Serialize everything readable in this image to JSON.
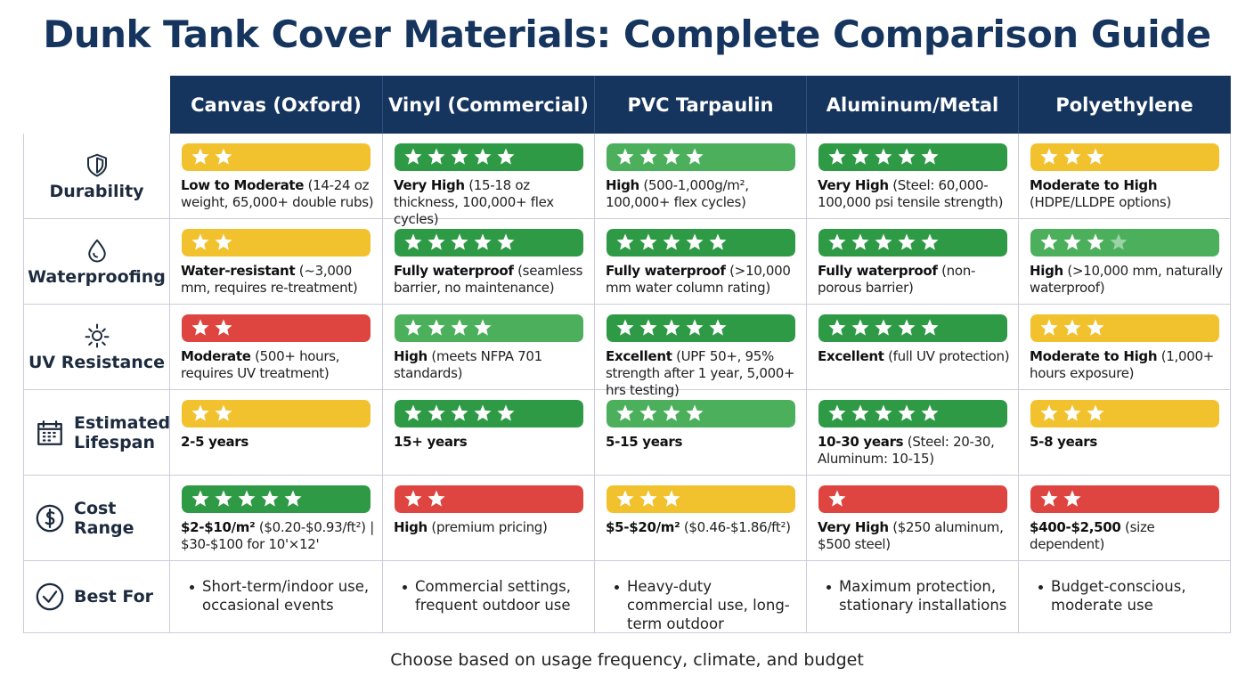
{
  "title": "Dunk Tank Cover Materials: Complete Comparison Guide",
  "columns": [
    "Canvas (Oxford)",
    "Vinyl (Commercial)",
    "PVC Tarpaulin",
    "Aluminum/Metal",
    "Polyethylene"
  ],
  "rows": [
    {
      "label": "Durability",
      "cells": [
        {
          "rating": 2,
          "color": "#f2c12e",
          "bold": "Low to Moderate",
          "text": "(14-24 oz weight, 65,000+ double rubs)"
        },
        {
          "rating": 5,
          "color": "#2e9a45",
          "bold": "Very High",
          "text": "(15-18 oz thickness, 100,000+ flex cycles)"
        },
        {
          "rating": 4,
          "color": "#4caf5c",
          "bold": "High",
          "text": "(500-1,000g/m², 100,000+ flex cycles)"
        },
        {
          "rating": 5,
          "color": "#2e9a45",
          "bold": "Very High",
          "text": "(Steel: 60,000-100,000 psi tensile strength)"
        },
        {
          "rating": 3,
          "color": "#f2c12e",
          "bold": "Moderate to High",
          "text": "(HDPE/LLDPE options)"
        }
      ]
    },
    {
      "label": "Waterproofing",
      "cells": [
        {
          "rating": 2,
          "color": "#f2c12e",
          "bold": "Water-resistant",
          "text": "(~3,000 mm, requires re-treatment)"
        },
        {
          "rating": 5,
          "color": "#2e9a45",
          "bold": "Fully waterproof",
          "text": "(seamless barrier, no maintenance)"
        },
        {
          "rating": 5,
          "color": "#2e9a45",
          "bold": "Fully waterproof",
          "text": "(>10,000 mm water column rating)"
        },
        {
          "rating": 5,
          "color": "#2e9a45",
          "bold": "Fully waterproof",
          "text": "(non-porous barrier)"
        },
        {
          "rating": 3.5,
          "color": "#4caf5c",
          "bold": "High",
          "text": "(>10,000 mm, naturally waterproof)"
        }
      ]
    },
    {
      "label": "UV Resistance",
      "cells": [
        {
          "rating": 2,
          "color": "#de4540",
          "bold": "Moderate",
          "text": "(500+ hours, requires UV treatment)"
        },
        {
          "rating": 4,
          "color": "#4caf5c",
          "bold": "High",
          "text": "(meets NFPA 701 standards)"
        },
        {
          "rating": 5,
          "color": "#2e9a45",
          "bold": "Excellent",
          "text": "(UPF 50+, 95% strength after 1 year, 5,000+ hrs testing)"
        },
        {
          "rating": 5,
          "color": "#2e9a45",
          "bold": "Excellent",
          "text": "(full UV protection)"
        },
        {
          "rating": 3,
          "color": "#f2c12e",
          "bold": "Moderate to High",
          "text": "(1,000+ hours exposure)"
        }
      ]
    },
    {
      "label": "Estimated Lifespan",
      "cells": [
        {
          "rating": 2,
          "color": "#f2c12e",
          "bold": "2-5 years"
        },
        {
          "rating": 5,
          "color": "#2e9a45",
          "bold": "15+ years"
        },
        {
          "rating": 4,
          "color": "#4caf5c",
          "bold": "5-15 years"
        },
        {
          "rating": 5,
          "color": "#2e9a45",
          "bold": "10-30 years",
          "text": "(Steel: 20-30, Aluminum: 10-15)"
        },
        {
          "rating": 3,
          "color": "#f2c12e",
          "bold": "5-8 years"
        }
      ]
    },
    {
      "label": "Cost Range",
      "cells": [
        {
          "rating": 5,
          "color": "#2e9a45",
          "bold": "$2-$10/m²",
          "text": "($0.20-$0.93/ft²) | $30-$100 for 10'×12'"
        },
        {
          "rating": 2,
          "color": "#de4540",
          "bold": "High",
          "text": "(premium pricing)"
        },
        {
          "rating": 3,
          "color": "#f2c12e",
          "bold": "$5-$20/m²",
          "text": "($0.46-$1.86/ft²)"
        },
        {
          "rating": 1,
          "color": "#de4540",
          "bold": "Very High",
          "text": "($250 aluminum, $500 steel)"
        },
        {
          "rating": 2,
          "color": "#de4540",
          "bold": "$400-$2,500",
          "text": "(size dependent)"
        }
      ]
    }
  ],
  "best_for": {
    "label": "Best For",
    "cells": [
      "Short-term/indoor use, occasional events",
      "Commercial settings, frequent outdoor use",
      "Heavy-duty commercial use, long-term outdoor",
      "Maximum protection, stationary installations",
      "Budget-conscious, moderate use"
    ]
  },
  "footer": "Choose based on usage frequency, climate, and budget"
}
